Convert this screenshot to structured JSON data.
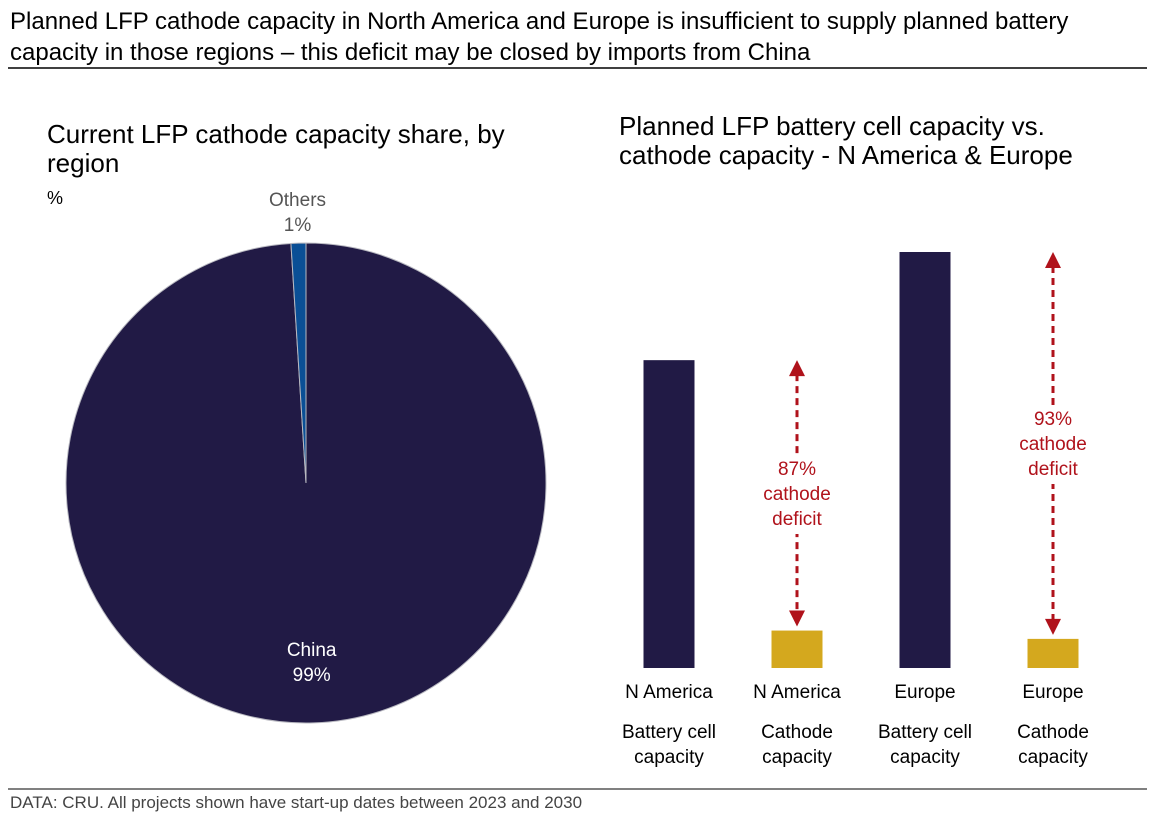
{
  "title": "Planned LFP cathode capacity in North America and Europe is insufficient to supply planned battery capacity in those regions – this deficit may be closed by imports from China",
  "source": "DATA: CRU. All projects shown have start-up dates between 2023 and 2030",
  "chart_data": [
    {
      "type": "pie",
      "title": "Current LFP cathode capacity share, by region",
      "subtitle": "%",
      "categories": [
        "China",
        "Others"
      ],
      "values": [
        99,
        1
      ],
      "value_labels": [
        "99%",
        "1%"
      ],
      "colors": [
        "#211a45",
        "#0a4f96"
      ]
    },
    {
      "type": "bar",
      "title": "Planned LFP battery cell capacity vs. cathode capacity - N America & Europe",
      "categories": [
        "N America",
        "N America",
        "Europe",
        "Europe"
      ],
      "sub_labels": [
        "Battery cell capacity",
        "Cathode capacity",
        "Battery cell capacity",
        "Cathode capacity"
      ],
      "values": [
        74,
        9,
        100,
        7
      ],
      "colors": [
        "#211a45",
        "#d4a81e",
        "#211a45",
        "#d4a81e"
      ],
      "annotations": [
        "87% cathode deficit",
        "93% cathode deficit"
      ],
      "annotation_color": "#b0121b"
    }
  ]
}
